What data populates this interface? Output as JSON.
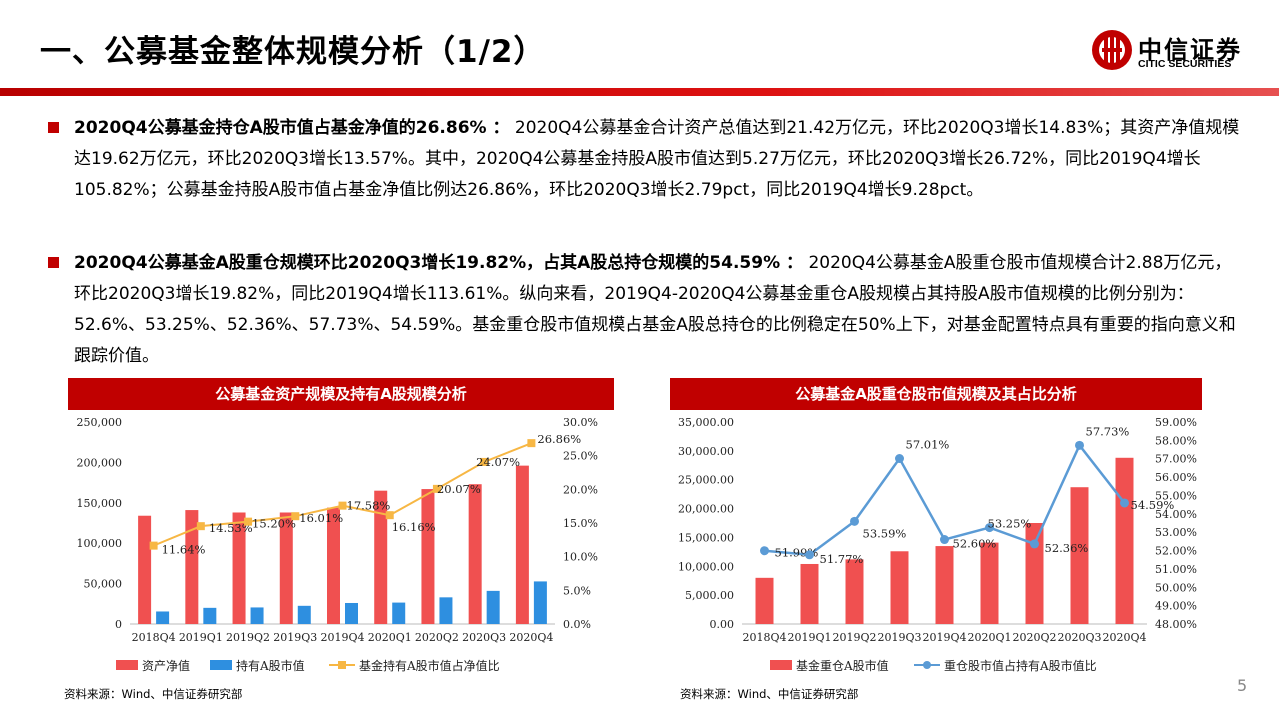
{
  "header": {
    "title": "一、公募基金整体规模分析（1/2）",
    "logo_cn": "中信证券",
    "logo_en": "CITIC SECURITIES"
  },
  "paragraphs": [
    {
      "bold": "2020Q4公募基金持仓A股市值占基金净值的26.86% ：",
      "text": "  2020Q4公募基金合计资产总值达到21.42万亿元，环比2020Q3增长14.83%；其资产净值规模达19.62万亿元，环比2020Q3增长13.57%。其中，2020Q4公募基金持股A股市值达到5.27万亿元，环比2020Q3增长26.72%，同比2019Q4增长105.82%；公募基金持股A股市值占基金净值比例达26.86%，环比2020Q3增长2.79pct，同比2019Q4增长9.28pct。"
    },
    {
      "bold": "2020Q4公募基金A股重仓规模环比2020Q3增长19.82%，占其A股总持仓规模的54.59% ：",
      "text": "  2020Q4公募基金A股重仓股市值规模合计2.88万亿元，环比2020Q3增长19.82%，同比2019Q4增长113.61%。纵向来看，2019Q4-2020Q4公募基金重仓A股规模占其持股A股市值规模的比例分别为：52.6%、53.25%、52.36%、57.73%、54.59%。基金重仓股市值规模占基金A股总持仓的比例稳定在50%上下，对基金配置特点具有重要的指向意义和跟踪价值。"
    }
  ],
  "chart_data": [
    {
      "type": "bar",
      "title": "公募基金资产规模及持有A股规模分析",
      "categories": [
        "2018Q4",
        "2019Q1",
        "2019Q2",
        "2019Q3",
        "2019Q4",
        "2020Q1",
        "2020Q2",
        "2020Q3",
        "2020Q4"
      ],
      "y_left": {
        "min": 0,
        "max": 250000,
        "ticks": [
          "0",
          "50,000",
          "100,000",
          "150,000",
          "200,000",
          "250,000"
        ]
      },
      "y_right": {
        "min": 0,
        "max": 30,
        "ticks": [
          "0.0%",
          "5.0%",
          "10.0%",
          "15.0%",
          "20.0%",
          "25.0%",
          "30.0%"
        ]
      },
      "series": [
        {
          "name": "资产净值",
          "kind": "bar",
          "axis": "left",
          "color": "#f05050",
          "values": [
            134000,
            141000,
            138000,
            138000,
            144000,
            165000,
            167000,
            173000,
            196000
          ]
        },
        {
          "name": "持有A股市值",
          "kind": "bar",
          "axis": "left",
          "color": "#2e8fe0",
          "values": [
            15500,
            20000,
            20500,
            22500,
            26000,
            26500,
            33000,
            41000,
            52700
          ]
        },
        {
          "name": "基金持有A股市值占净值比",
          "kind": "line",
          "axis": "right",
          "color": "#f7b744",
          "values": [
            11.64,
            14.53,
            15.2,
            16.01,
            17.58,
            16.16,
            20.07,
            24.07,
            26.86
          ],
          "labels": [
            "11.64%",
            "14.53%",
            "15.20%",
            "16.01%",
            "17.58%",
            "16.16%",
            "20.07%",
            "24.07%",
            "26.86%"
          ]
        }
      ],
      "legend": "bottom",
      "source": "资料来源：Wind、中信证券研究部"
    },
    {
      "type": "bar",
      "title": "公募基金A股重仓股市值规模及其占比分析",
      "categories": [
        "2018Q4",
        "2019Q1",
        "2019Q2",
        "2019Q3",
        "2019Q4",
        "2020Q1",
        "2020Q2",
        "2020Q3",
        "2020Q4"
      ],
      "y_left": {
        "min": 0,
        "max": 35000,
        "ticks": [
          "0.00",
          "5,000.00",
          "10,000.00",
          "15,000.00",
          "20,000.00",
          "25,000.00",
          "30,000.00",
          "35,000.00"
        ]
      },
      "y_right": {
        "min": 48,
        "max": 59,
        "ticks": [
          "48.00%",
          "49.00%",
          "50.00%",
          "51.00%",
          "52.00%",
          "53.00%",
          "54.00%",
          "55.00%",
          "56.00%",
          "57.00%",
          "58.00%",
          "59.00%"
        ]
      },
      "series": [
        {
          "name": "基金重仓A股市值",
          "kind": "bar",
          "axis": "left",
          "color": "#f05050",
          "values": [
            8000,
            10400,
            11200,
            12600,
            13500,
            14100,
            17500,
            23700,
            28800
          ]
        },
        {
          "name": "重仓股市值占持有A股市值比",
          "kind": "line",
          "axis": "right",
          "color": "#5b9bd5",
          "values": [
            51.99,
            51.77,
            53.59,
            57.01,
            52.6,
            53.25,
            52.36,
            57.73,
            54.59
          ],
          "labels": [
            "51.99%",
            "51.77%",
            "53.59%",
            "57.01%",
            "52.60%",
            "53.25%",
            "52.36%",
            "57.73%",
            "54.59%"
          ]
        }
      ],
      "legend": "bottom",
      "source": "资料来源：Wind、中信证券研究部"
    }
  ],
  "page_number": "5"
}
